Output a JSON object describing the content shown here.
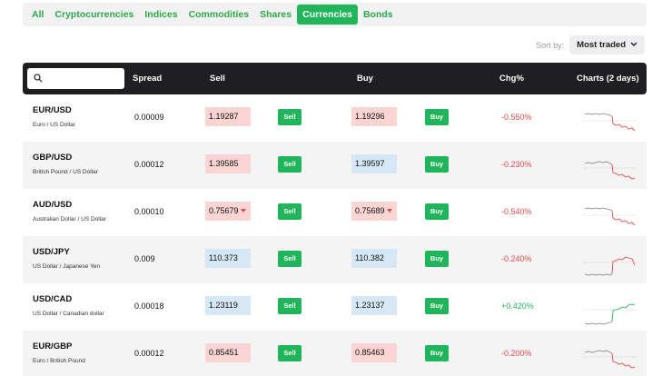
{
  "tabs": [
    {
      "label": "All",
      "active": false
    },
    {
      "label": "Cryptocurrencies",
      "active": false
    },
    {
      "label": "Indices",
      "active": false
    },
    {
      "label": "Commodities",
      "active": false
    },
    {
      "label": "Shares",
      "active": false
    },
    {
      "label": "Currencies",
      "active": true
    },
    {
      "label": "Bonds",
      "active": false
    }
  ],
  "sort": {
    "label": "Sort by:",
    "value": "Most traded"
  },
  "search": {
    "placeholder": "",
    "value": ""
  },
  "header": {
    "spread": "Spread",
    "sell": "Sell",
    "buy": "Buy",
    "chg": "Chg%",
    "charts": "Charts (2 days)"
  },
  "colors": {
    "accent_green": "#21b55b",
    "negative_red": "#e0494e",
    "header_dark": "#1f1f22"
  },
  "rows": [
    {
      "symbol": "EUR/USD",
      "name": "Euro / US Dollar",
      "spread": "0.00009",
      "sell": "1.19287",
      "sell_tone": "red",
      "sell_arrow": false,
      "buy": "1.19296",
      "buy_tone": "red",
      "buy_arrow": false,
      "sell_btn": "Sell",
      "buy_btn": "Buy",
      "chg": "-0.550%",
      "trend": "neg"
    },
    {
      "symbol": "GBP/USD",
      "name": "British Pound / US Dollar",
      "spread": "0.00012",
      "sell": "1.39585",
      "sell_tone": "red",
      "sell_arrow": false,
      "buy": "1.39597",
      "buy_tone": "blue",
      "buy_arrow": false,
      "sell_btn": "Sell",
      "buy_btn": "Buy",
      "chg": "-0.230%",
      "trend": "neg"
    },
    {
      "symbol": "AUD/USD",
      "name": "Australian Dollar / US Dollar",
      "spread": "0.00010",
      "sell": "0.75679",
      "sell_tone": "red",
      "sell_arrow": true,
      "buy": "0.75689",
      "buy_tone": "red",
      "buy_arrow": true,
      "sell_btn": "Sell",
      "buy_btn": "Buy",
      "chg": "-0.540%",
      "trend": "neg"
    },
    {
      "symbol": "USD/JPY",
      "name": "US Dollar / Japanese Yen",
      "spread": "0.009",
      "sell": "110.373",
      "sell_tone": "blue",
      "sell_arrow": false,
      "buy": "110.382",
      "buy_tone": "blue",
      "buy_arrow": false,
      "sell_btn": "Sell",
      "buy_btn": "Buy",
      "chg": "-0.240%",
      "trend": "neg"
    },
    {
      "symbol": "USD/CAD",
      "name": "US Dollar / Canadian dollar",
      "spread": "0.00018",
      "sell": "1.23119",
      "sell_tone": "blue",
      "sell_arrow": false,
      "buy": "1.23137",
      "buy_tone": "blue",
      "buy_arrow": false,
      "sell_btn": "Sell",
      "buy_btn": "Buy",
      "chg": "+0.420%",
      "trend": "pos"
    },
    {
      "symbol": "EUR/GBP",
      "name": "Euro / British Pound",
      "spread": "0.00012",
      "sell": "0.85451",
      "sell_tone": "red",
      "sell_arrow": false,
      "buy": "0.85463",
      "buy_tone": "red",
      "buy_arrow": false,
      "sell_btn": "Sell",
      "buy_btn": "Buy",
      "chg": "-0.200%",
      "trend": "neg"
    }
  ]
}
